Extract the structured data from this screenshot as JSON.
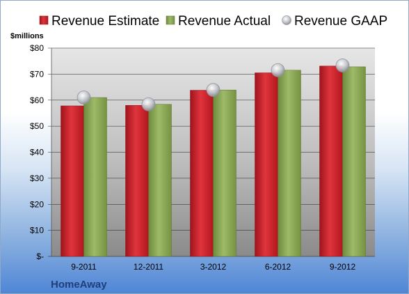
{
  "chart_data": {
    "type": "bar",
    "ylabel": "$millions",
    "categories": [
      "9-2011",
      "12-2011",
      "3-2012",
      "6-2012",
      "9-2012"
    ],
    "series": [
      {
        "name": "Revenue Estimate",
        "kind": "bar",
        "color": "#d0222b",
        "values": [
          57.8,
          58.0,
          63.8,
          70.5,
          73.1
        ]
      },
      {
        "name": "Revenue Actual",
        "kind": "bar",
        "color": "#8fac5a",
        "values": [
          61.0,
          58.4,
          63.9,
          71.5,
          72.8
        ]
      },
      {
        "name": "Revenue GAAP",
        "kind": "marker",
        "color": "#c9ccd2",
        "values": [
          61.0,
          58.4,
          63.9,
          71.5,
          73.3
        ]
      }
    ],
    "ylim": [
      0,
      80
    ],
    "yticks": [
      0,
      10,
      20,
      30,
      40,
      50,
      60,
      70,
      80
    ],
    "ytick_labels": [
      "$-",
      "$10",
      "$20",
      "$30",
      "$40",
      "$50",
      "$60",
      "$70",
      "$80"
    ],
    "legend_position": "top",
    "grid": true
  },
  "footer": {
    "company": "HomeAway"
  }
}
